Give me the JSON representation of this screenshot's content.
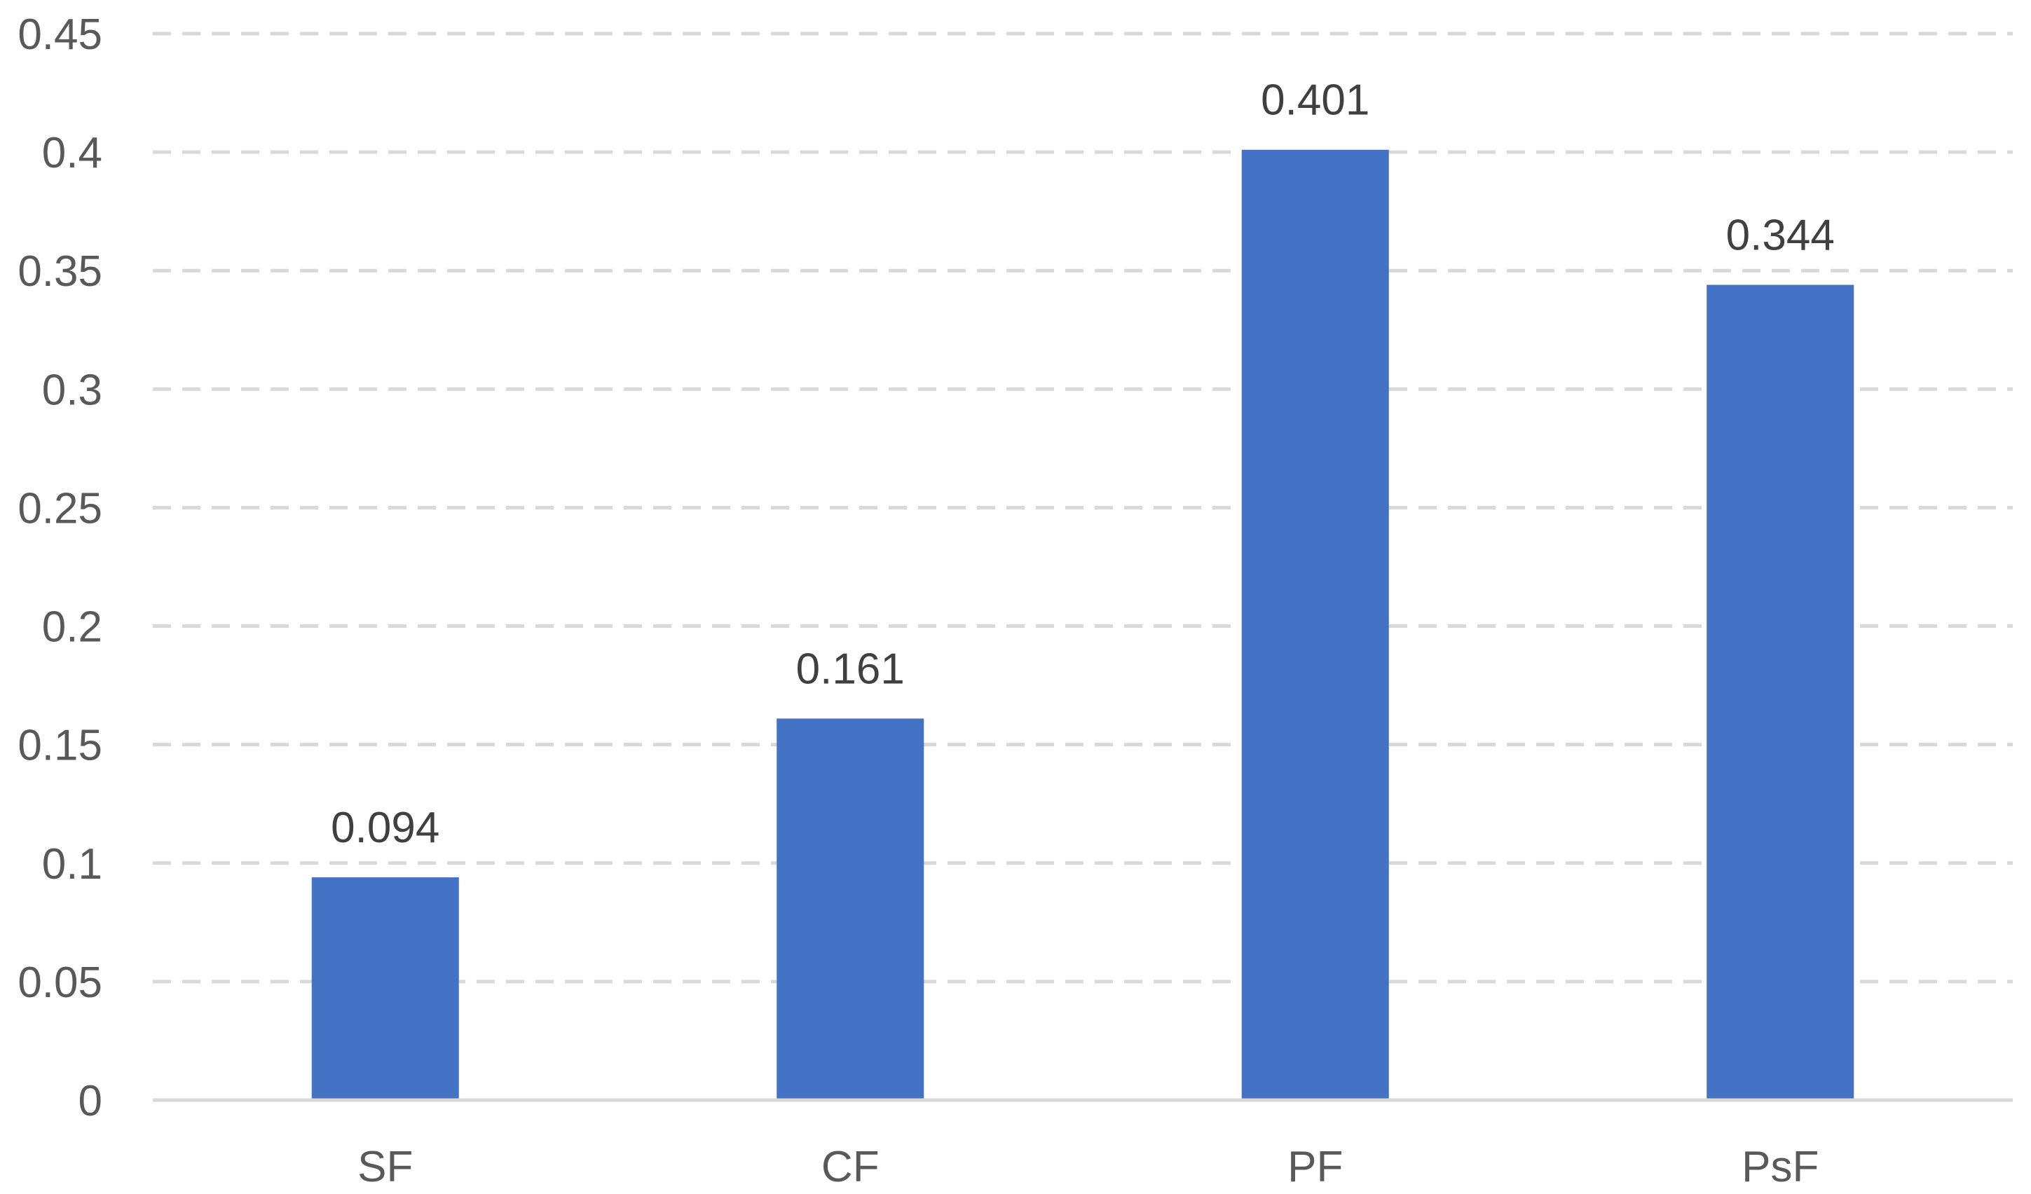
{
  "chart_data": {
    "type": "bar",
    "title": "",
    "xlabel": "",
    "ylabel": "",
    "categories": [
      "SF",
      "CF",
      "PF",
      "PsF"
    ],
    "values": [
      0.094,
      0.161,
      0.401,
      0.344
    ],
    "data_labels": [
      "0.094",
      "0.161",
      "0.401",
      "0.344"
    ],
    "ylim": [
      0,
      0.45
    ],
    "y_ticks": [
      0,
      0.05,
      0.1,
      0.15,
      0.2,
      0.25,
      0.3,
      0.35,
      0.4,
      0.45
    ],
    "y_tick_labels": [
      "0",
      "0.05",
      "0.1",
      "0.15",
      "0.2",
      "0.25",
      "0.3",
      "0.35",
      "0.4",
      "0.45"
    ],
    "grid": true,
    "grid_style": "dashed",
    "legend": "none",
    "bar_color": "#4472C4",
    "grid_color": "#D9D9D9",
    "text_color": "#595959"
  }
}
